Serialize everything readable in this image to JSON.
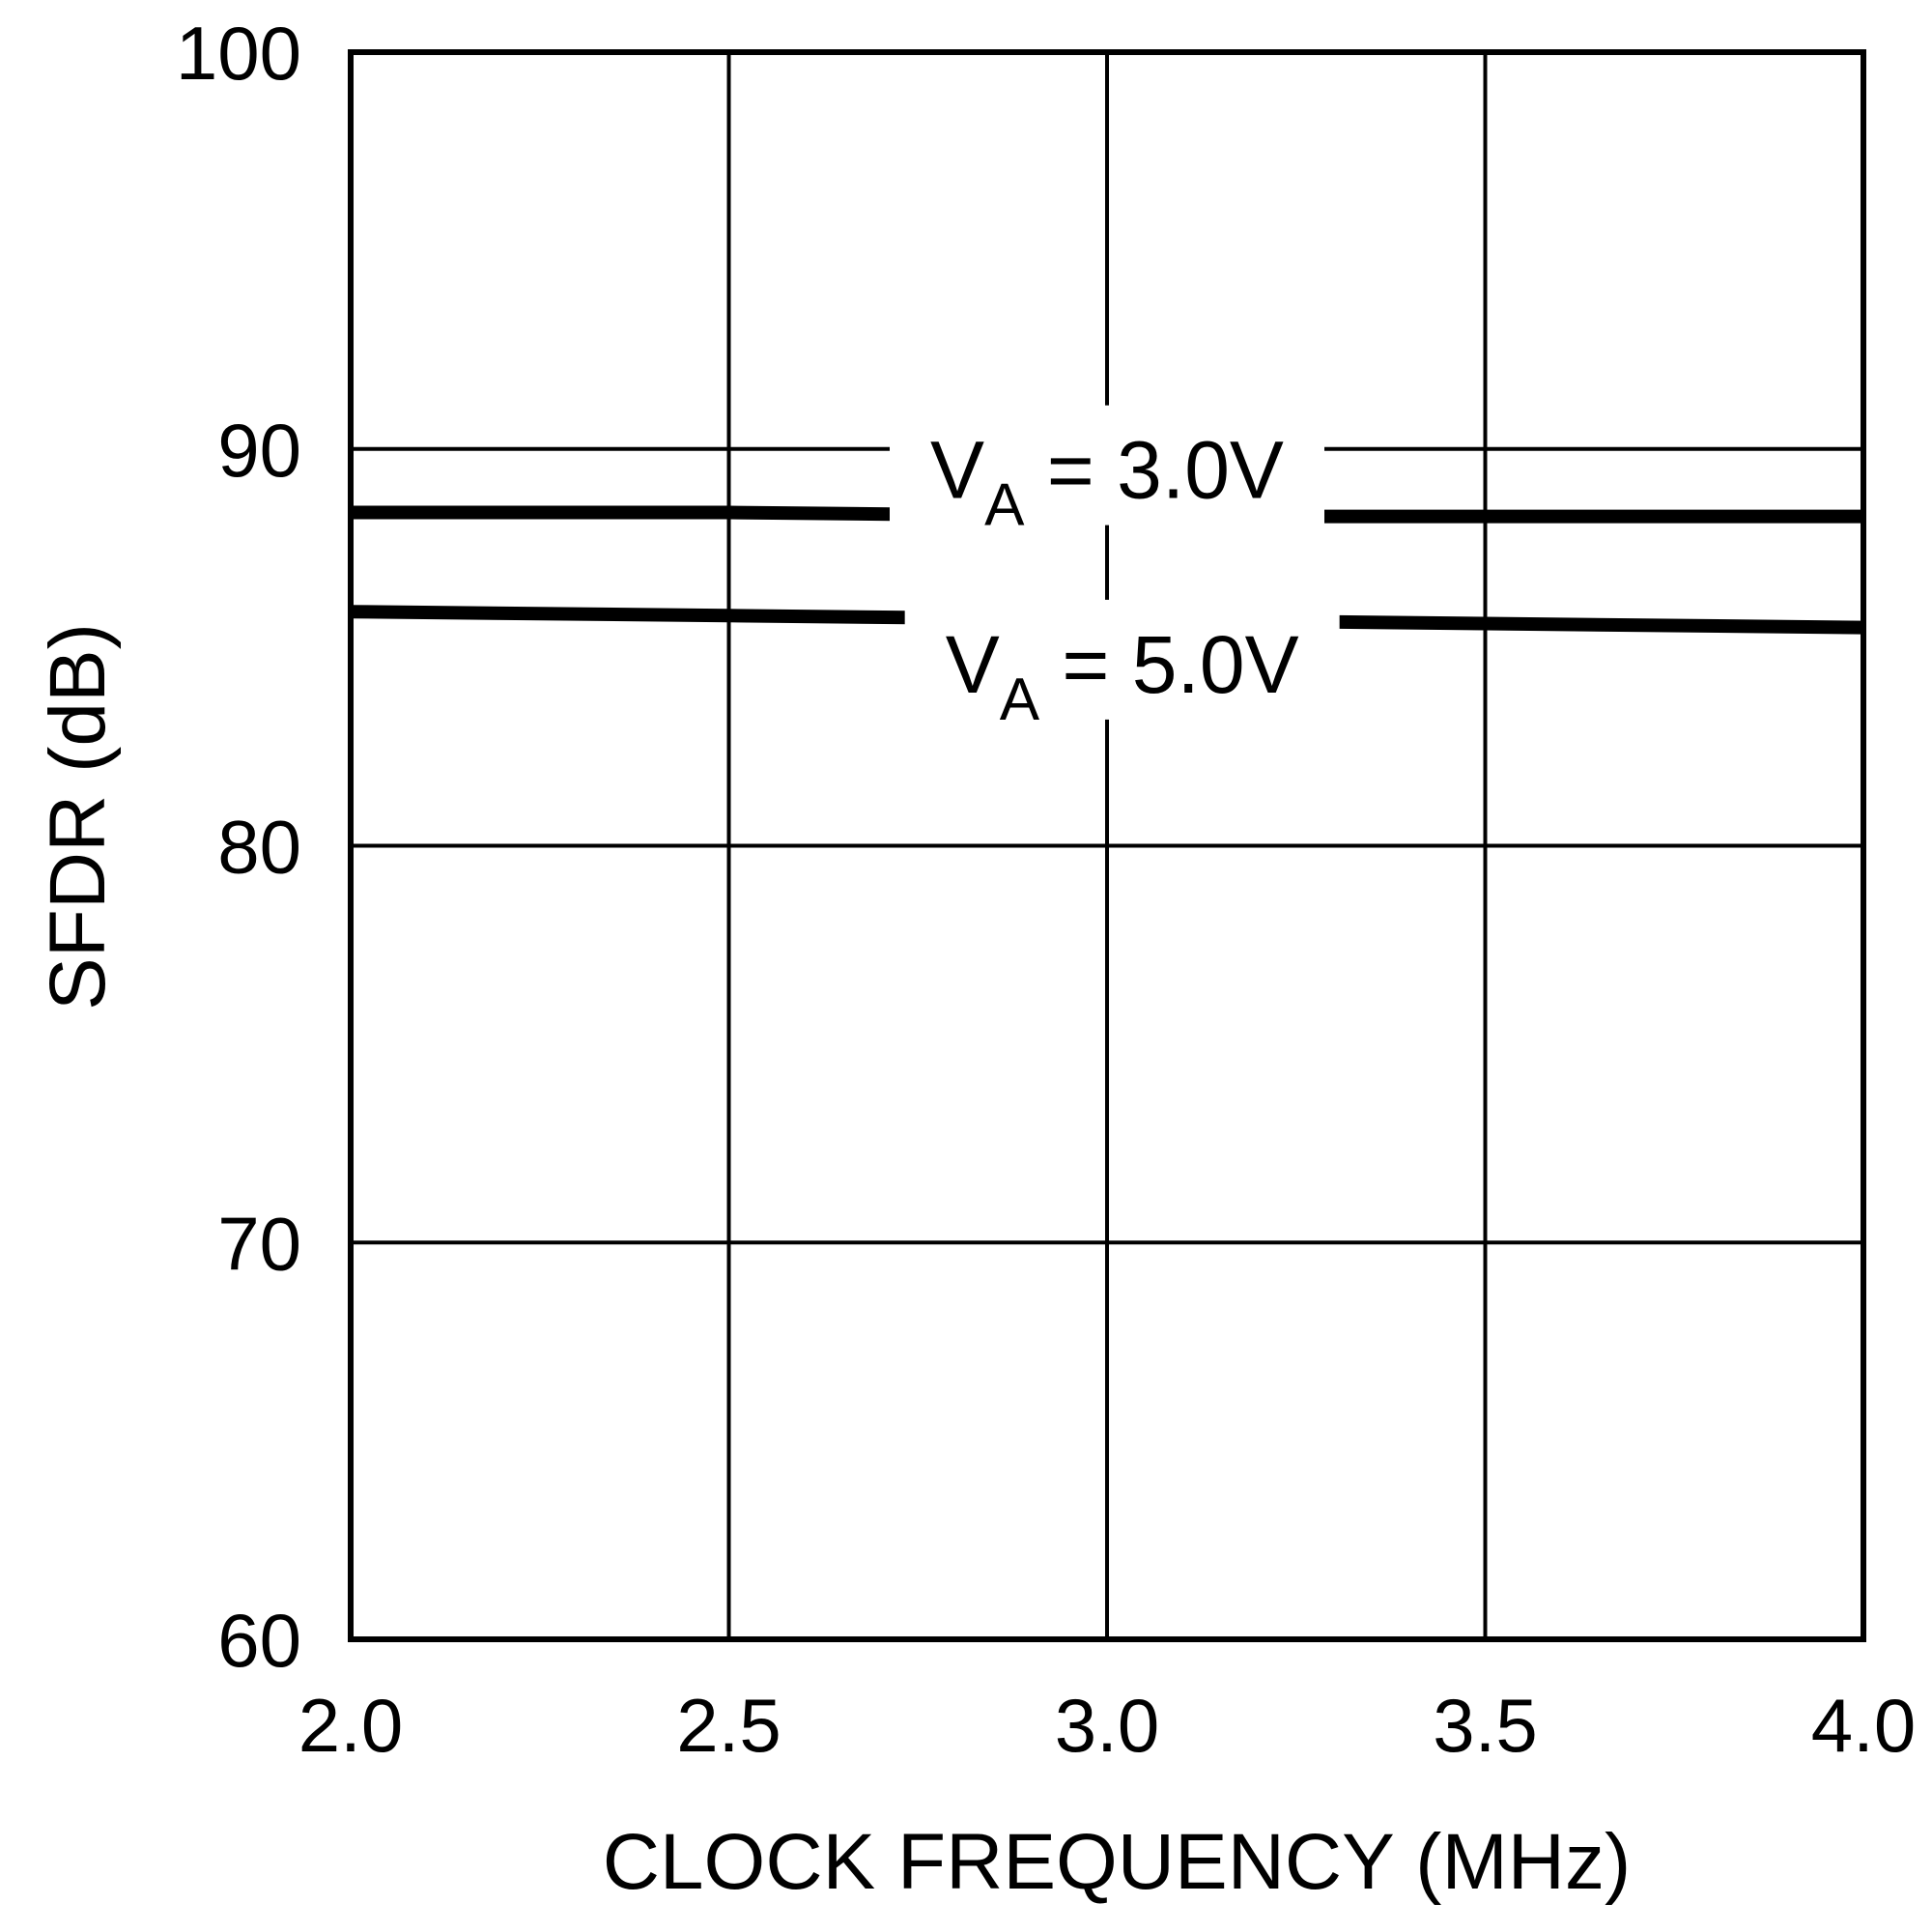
{
  "chart_data": {
    "type": "line",
    "title": "",
    "xlabel": "CLOCK FREQUENCY (MHz)",
    "ylabel": "SFDR (dB)",
    "xlim": [
      2.0,
      4.0
    ],
    "ylim": [
      60,
      100
    ],
    "xticks": [
      "2.0",
      "2.5",
      "3.0",
      "3.5",
      "4.0"
    ],
    "yticks": [
      "60",
      "70",
      "80",
      "90",
      "100"
    ],
    "grid": true,
    "series": [
      {
        "name_main": "V",
        "name_sub": "A",
        "name_rest": " = 3.0V",
        "x": [
          2.0,
          2.5,
          3.0,
          3.5,
          4.0
        ],
        "y": [
          88.4,
          88.4,
          88.3,
          88.3,
          88.3
        ]
      },
      {
        "name_main": "V",
        "name_sub": "A",
        "name_rest": " = 5.0V",
        "x": [
          2.0,
          2.5,
          3.0,
          3.5,
          4.0
        ],
        "y": [
          85.9,
          85.8,
          85.7,
          85.6,
          85.5
        ]
      }
    ]
  }
}
